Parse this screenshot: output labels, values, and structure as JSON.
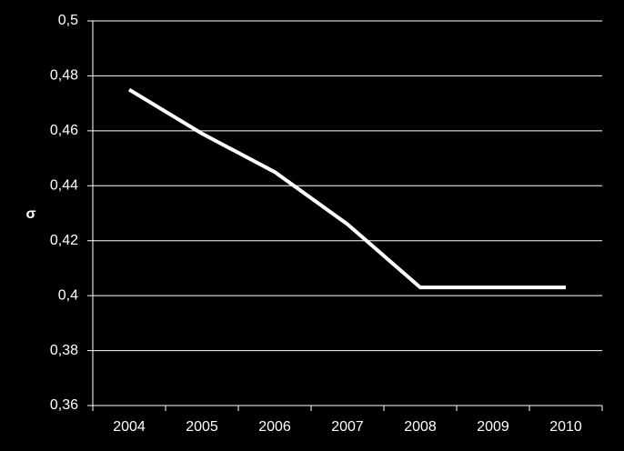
{
  "chart_data": {
    "type": "line",
    "y_label": "σ",
    "categories": [
      "2004",
      "2005",
      "2006",
      "2007",
      "2008",
      "2009",
      "2010"
    ],
    "values": [
      0.475,
      0.459,
      0.445,
      0.426,
      0.403,
      0.403,
      0.403
    ],
    "color": "#ffffff",
    "ylim": [
      0.36,
      0.5
    ],
    "yticks": [
      {
        "value": 0.36,
        "label": "0,36"
      },
      {
        "value": 0.38,
        "label": "0,38"
      },
      {
        "value": 0.4,
        "label": "0,4"
      },
      {
        "value": 0.42,
        "label": "0,42"
      },
      {
        "value": 0.44,
        "label": "0,44"
      },
      {
        "value": 0.46,
        "label": "0,46"
      },
      {
        "value": 0.48,
        "label": "0,48"
      },
      {
        "value": 0.5,
        "label": "0,5"
      }
    ],
    "grid": true
  }
}
